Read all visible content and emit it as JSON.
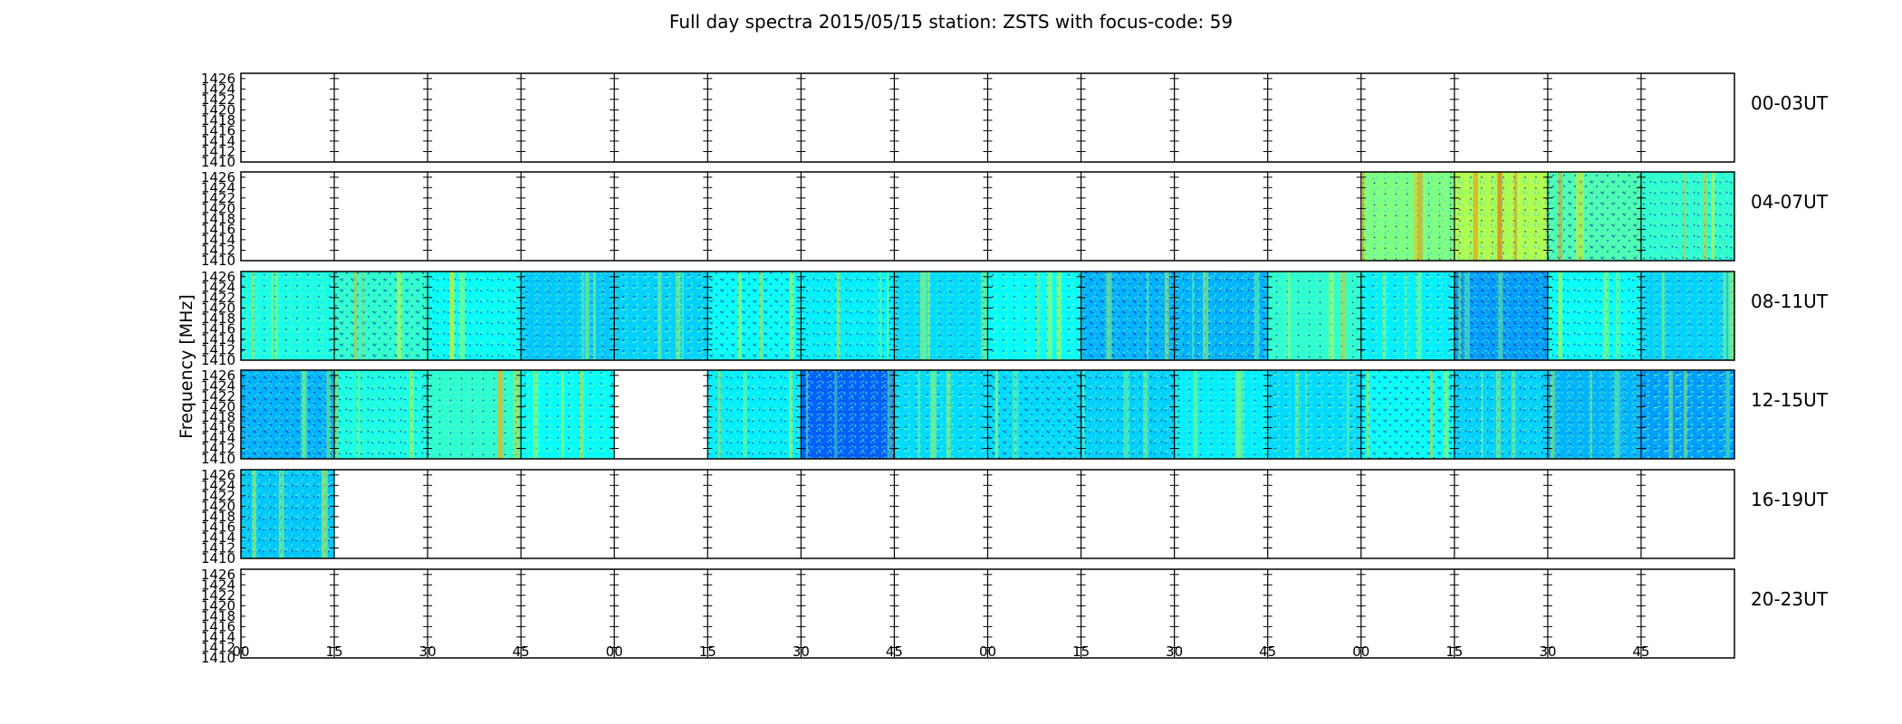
{
  "figure": {
    "title": "Full day spectra 2015/05/15 station: ZSTS with focus-code: 59"
  },
  "chart_data": {
    "type": "heatmap",
    "title": "Full day spectra 2015/05/15 station: ZSTS with focus-code: 59",
    "ylabel": "Frequency [MHz]",
    "xlabel": "",
    "ylim": [
      1410,
      1427
    ],
    "y_ticks": [
      "1426",
      "1424",
      "1422",
      "1420",
      "1418",
      "1416",
      "1414",
      "1412",
      "1410"
    ],
    "x_tick_labels": [
      "00",
      "15",
      "30",
      "45",
      "00",
      "15",
      "30",
      "45",
      "00",
      "15",
      "30",
      "45",
      "00",
      "15",
      "30",
      "45"
    ],
    "colormap": "jet",
    "rows": [
      {
        "label": "00-03UT",
        "filled": [
          0,
          0,
          0,
          0,
          0,
          0,
          0,
          0,
          0,
          0,
          0,
          0,
          0,
          0,
          0,
          0
        ],
        "level": [
          0,
          0,
          0,
          0,
          0,
          0,
          0,
          0,
          0,
          0,
          0,
          0,
          0,
          0,
          0,
          0
        ]
      },
      {
        "label": "04-07UT",
        "filled": [
          0,
          0,
          0,
          0,
          0,
          0,
          0,
          0,
          0,
          0,
          0,
          0,
          1,
          1,
          1,
          1
        ],
        "level": [
          0,
          0,
          0,
          0,
          0,
          0,
          0,
          0,
          0,
          0,
          0,
          0,
          0.5,
          0.55,
          0.45,
          0.42
        ]
      },
      {
        "label": "08-11UT",
        "filled": [
          1,
          1,
          1,
          1,
          1,
          1,
          1,
          1,
          1,
          1,
          1,
          1,
          1,
          1,
          1,
          1
        ],
        "level": [
          0.4,
          0.42,
          0.38,
          0.32,
          0.33,
          0.38,
          0.36,
          0.34,
          0.38,
          0.3,
          0.3,
          0.42,
          0.36,
          0.28,
          0.38,
          0.33
        ]
      },
      {
        "label": "12-15UT",
        "filled": [
          1,
          1,
          1,
          1,
          0,
          1,
          1,
          1,
          1,
          1,
          1,
          1,
          1,
          1,
          1,
          1
        ],
        "level": [
          0.3,
          0.4,
          0.42,
          0.38,
          0,
          0.36,
          0.22,
          0.34,
          0.34,
          0.33,
          0.36,
          0.34,
          0.38,
          0.33,
          0.3,
          0.28
        ]
      },
      {
        "label": "16-19UT",
        "filled": [
          1,
          0,
          0,
          0,
          0,
          0,
          0,
          0,
          0,
          0,
          0,
          0,
          0,
          0,
          0,
          0
        ],
        "level": [
          0.32,
          0,
          0,
          0,
          0,
          0,
          0,
          0,
          0,
          0,
          0,
          0,
          0,
          0,
          0,
          0
        ]
      },
      {
        "label": "20-23UT",
        "filled": [
          0,
          0,
          0,
          0,
          0,
          0,
          0,
          0,
          0,
          0,
          0,
          0,
          0,
          0,
          0,
          0
        ],
        "level": [
          0,
          0,
          0,
          0,
          0,
          0,
          0,
          0,
          0,
          0,
          0,
          0,
          0,
          0,
          0,
          0
        ]
      }
    ]
  }
}
